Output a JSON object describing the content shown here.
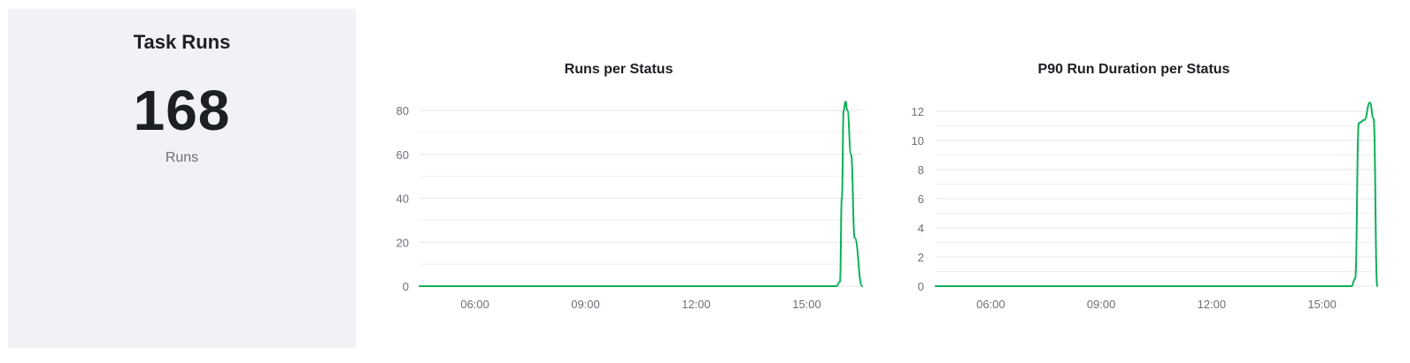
{
  "stat": {
    "title": "Task Runs",
    "value": "168",
    "unit": "Runs"
  },
  "colors": {
    "series": "#0fb05a"
  },
  "chart_data": [
    {
      "type": "line",
      "title": "Runs per Status",
      "xlabel": "",
      "ylabel": "",
      "ylim": [
        0,
        80
      ],
      "yticks": [
        "0",
        "20",
        "40",
        "60",
        "80"
      ],
      "xticks": [
        "06:00",
        "09:00",
        "12:00",
        "15:00"
      ],
      "xlim_hours": [
        4.5,
        16.5
      ],
      "grid": true,
      "series": [
        {
          "values": [
            [
              4.5,
              0
            ],
            [
              15.8,
              0
            ],
            [
              15.9,
              2
            ],
            [
              15.95,
              40
            ],
            [
              16.0,
              80
            ],
            [
              16.05,
              84
            ],
            [
              16.1,
              80
            ],
            [
              16.2,
              60
            ],
            [
              16.3,
              22
            ],
            [
              16.5,
              0
            ]
          ]
        }
      ]
    },
    {
      "type": "line",
      "title": "P90 Run Duration per Status",
      "xlabel": "",
      "ylabel": "",
      "ylim": [
        0,
        12
      ],
      "yticks": [
        "0",
        "2",
        "4",
        "6",
        "8",
        "10",
        "12"
      ],
      "xticks": [
        "06:00",
        "09:00",
        "12:00",
        "15:00"
      ],
      "xlim_hours": [
        4.5,
        16.5
      ],
      "grid": true,
      "series": [
        {
          "values": [
            [
              4.5,
              0
            ],
            [
              15.8,
              0
            ],
            [
              15.9,
              0.5
            ],
            [
              16.0,
              11.2
            ],
            [
              16.15,
              11.4
            ],
            [
              16.3,
              12.6
            ],
            [
              16.4,
              11.5
            ],
            [
              16.5,
              0
            ]
          ]
        }
      ]
    }
  ]
}
